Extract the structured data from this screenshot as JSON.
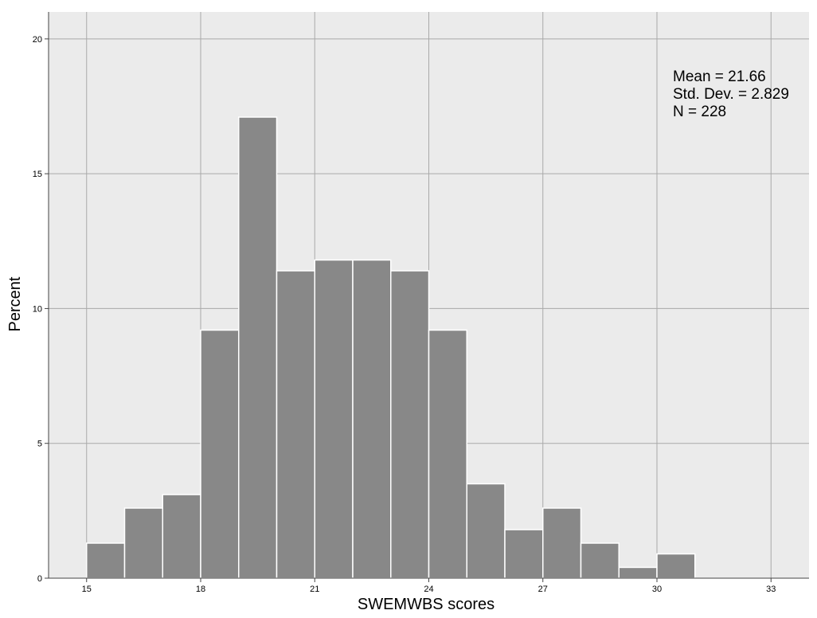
{
  "colors": {
    "plot_background": "#ebebeb",
    "grid": "#a9a9a9",
    "bar_fill": "#888888",
    "bar_stroke": "#ffffff",
    "axis": "#444444"
  },
  "stats": {
    "mean": "Mean = 21.66",
    "sd": "Std. Dev. = 2.829",
    "n": "N = 228"
  },
  "chart_data": {
    "type": "bar",
    "xlabel": "SWEMWBS scores",
    "ylabel": "Percent",
    "xlim": [
      14,
      34
    ],
    "ylim": [
      0,
      21
    ],
    "x_ticks": [
      15,
      18,
      21,
      24,
      27,
      30,
      33
    ],
    "y_ticks": [
      0,
      5,
      10,
      15,
      20
    ],
    "grid": true,
    "bins": [
      {
        "start": 15,
        "end": 16,
        "value": 1.3
      },
      {
        "start": 16,
        "end": 17,
        "value": 2.6
      },
      {
        "start": 17,
        "end": 18,
        "value": 3.1
      },
      {
        "start": 18,
        "end": 19,
        "value": 9.2
      },
      {
        "start": 19,
        "end": 20,
        "value": 17.1
      },
      {
        "start": 20,
        "end": 21,
        "value": 11.4
      },
      {
        "start": 21,
        "end": 22,
        "value": 11.8
      },
      {
        "start": 22,
        "end": 23,
        "value": 11.8
      },
      {
        "start": 23,
        "end": 24,
        "value": 11.4
      },
      {
        "start": 24,
        "end": 25,
        "value": 9.2
      },
      {
        "start": 25,
        "end": 26,
        "value": 3.5
      },
      {
        "start": 26,
        "end": 27,
        "value": 1.8
      },
      {
        "start": 27,
        "end": 28,
        "value": 2.6
      },
      {
        "start": 28,
        "end": 29,
        "value": 1.3
      },
      {
        "start": 29,
        "end": 30,
        "value": 0.4
      },
      {
        "start": 30,
        "end": 31,
        "value": 0.9
      }
    ]
  }
}
